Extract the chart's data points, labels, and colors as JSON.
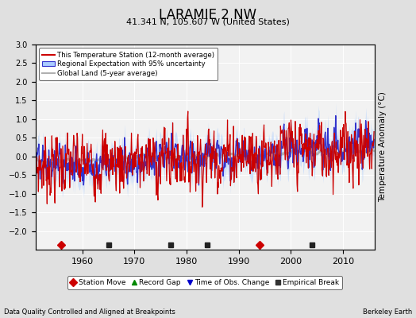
{
  "title": "LARAMIE 2 NW",
  "subtitle": "41.341 N, 105.607 W (United States)",
  "footer_left": "Data Quality Controlled and Aligned at Breakpoints",
  "footer_right": "Berkeley Earth",
  "xlabel_years": [
    1960,
    1970,
    1980,
    1990,
    2000,
    2010
  ],
  "ylim": [
    -2.5,
    3.0
  ],
  "yticks": [
    -2,
    -1.5,
    -1,
    -0.5,
    0,
    0.5,
    1,
    1.5,
    2,
    2.5,
    3
  ],
  "xlim": [
    1951,
    2016
  ],
  "bg_color": "#e0e0e0",
  "plot_bg_color": "#f2f2f2",
  "legend_entries": [
    "This Temperature Station (12-month average)",
    "Regional Expectation with 95% uncertainty",
    "Global Land (5-year average)"
  ],
  "marker_legend": [
    {
      "label": "Station Move",
      "color": "#cc0000",
      "marker": "D"
    },
    {
      "label": "Record Gap",
      "color": "#008800",
      "marker": "^"
    },
    {
      "label": "Time of Obs. Change",
      "color": "#0000cc",
      "marker": "v"
    },
    {
      "label": "Empirical Break",
      "color": "#333333",
      "marker": "s"
    }
  ],
  "station_moves": [
    1956,
    1994
  ],
  "record_gaps": [],
  "time_obs_changes": [],
  "empirical_breaks": [
    1965,
    1977,
    1984,
    2004
  ]
}
